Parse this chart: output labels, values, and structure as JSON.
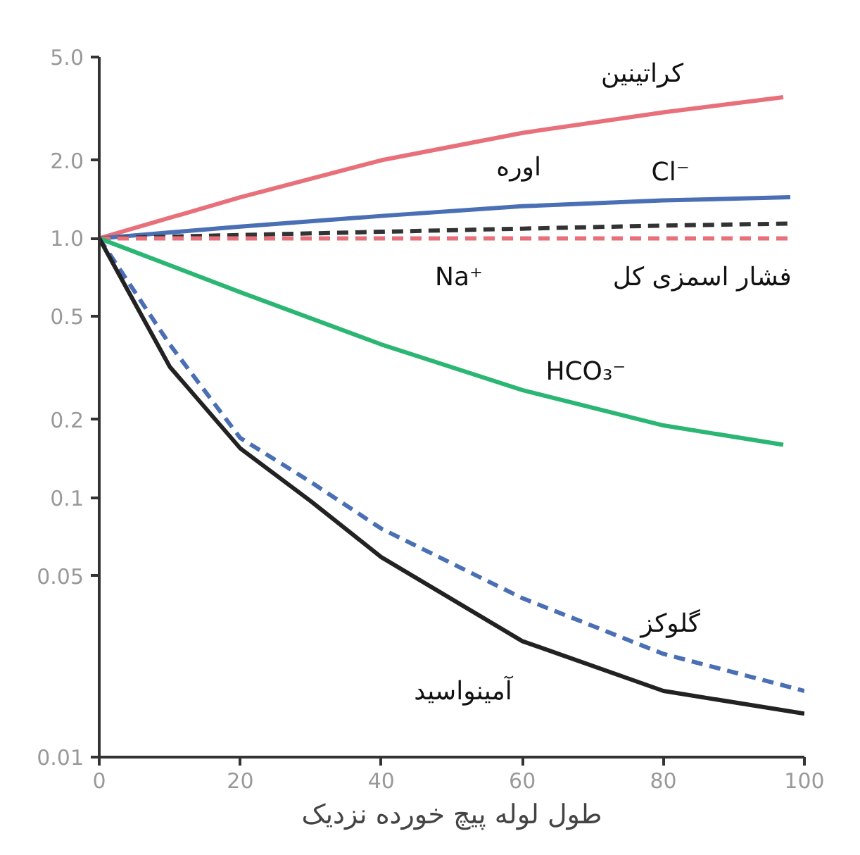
{
  "chart_data": {
    "type": "line",
    "xlabel": "طول لوله پیچ خورده نزدیک",
    "xlim": [
      0,
      100
    ],
    "xticks": [
      0,
      20,
      40,
      60,
      80,
      100
    ],
    "ylim": [
      0.01,
      5
    ],
    "yticks": [
      {
        "value": 0.01,
        "label": "0.01"
      },
      {
        "value": 0.05,
        "label": "0.05"
      },
      {
        "value": 0.1,
        "label": "0.1"
      },
      {
        "value": 0.2,
        "label": "0.2"
      },
      {
        "value": 0.5,
        "label": "0.5"
      },
      {
        "value": 1,
        "label": "1.0"
      },
      {
        "value": 2,
        "label": "2.0"
      },
      {
        "value": 5,
        "label": "5.0"
      }
    ],
    "log": "y",
    "grid": false,
    "series": [
      {
        "color": "#e8707a",
        "line_style": "solid",
        "x": [
          0,
          20,
          40,
          60,
          80,
          97
        ],
        "values": [
          1,
          1.44,
          2.0,
          2.55,
          3.06,
          3.5
        ]
      },
      {
        "color": "#4a6fb5",
        "line_style": "solid",
        "x": [
          0,
          20,
          40,
          60,
          80,
          98
        ],
        "values": [
          1,
          1.11,
          1.22,
          1.33,
          1.4,
          1.44
        ]
      },
      {
        "color": "#333333",
        "line_style": "dashed",
        "x": [
          0,
          20,
          40,
          60,
          80,
          98
        ],
        "values": [
          1,
          1.03,
          1.06,
          1.09,
          1.12,
          1.14
        ]
      },
      {
        "color": "#e8707a",
        "line_style": "dashed",
        "x": [
          0,
          20,
          40,
          60,
          80,
          98
        ],
        "values": [
          1,
          1,
          1,
          1,
          1,
          1
        ]
      },
      {
        "color": "#2bb673",
        "line_style": "solid",
        "x": [
          0,
          20,
          40,
          60,
          80,
          97
        ],
        "values": [
          1,
          0.62,
          0.39,
          0.26,
          0.19,
          0.16
        ]
      },
      {
        "color": "#4a6fb5",
        "line_style": "dashed",
        "x": [
          0,
          10,
          20,
          30,
          40,
          60,
          80,
          100
        ],
        "values": [
          1,
          0.39,
          0.17,
          0.115,
          0.076,
          0.041,
          0.025,
          0.018
        ]
      },
      {
        "color": "#222222",
        "line_style": "solid",
        "x": [
          0,
          10,
          20,
          30,
          40,
          60,
          80,
          100
        ],
        "values": [
          1,
          0.32,
          0.155,
          0.097,
          0.059,
          0.028,
          0.018,
          0.0147
        ]
      }
    ],
    "annotations": [
      "کراتینین",
      "اوره",
      "Cl⁻",
      "Na⁺",
      "فشار اسمزی کل",
      "HCO₃⁻",
      "گلوکز",
      "آمینواسید"
    ]
  }
}
